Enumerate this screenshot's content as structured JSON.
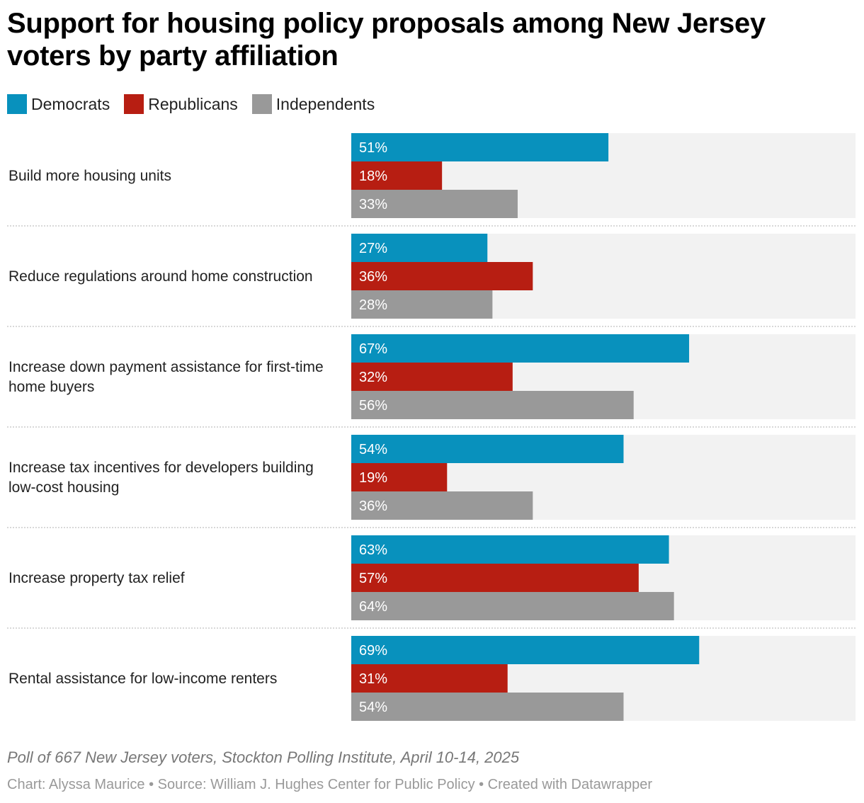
{
  "title": "Support for housing policy proposals among New Jersey voters by party affiliation",
  "legend": [
    {
      "label": "Democrats",
      "color": "#0891bd"
    },
    {
      "label": "Republicans",
      "color": "#b71e12"
    },
    {
      "label": "Independents",
      "color": "#999999"
    }
  ],
  "chart_data": {
    "type": "bar",
    "orientation": "horizontal",
    "grouped": true,
    "categories": [
      "Build more housing units",
      "Reduce regulations around home construction",
      "Increase down payment assistance for first-time home buyers",
      "Increase tax incentives for developers building low-cost housing",
      "Increase property tax relief",
      "Rental assistance for low-income renters"
    ],
    "series": [
      {
        "name": "Democrats",
        "color": "#0891bd",
        "values": [
          51,
          27,
          67,
          54,
          63,
          69
        ]
      },
      {
        "name": "Republicans",
        "color": "#b71e12",
        "values": [
          18,
          36,
          32,
          19,
          57,
          31
        ]
      },
      {
        "name": "Independents",
        "color": "#999999",
        "values": [
          33,
          28,
          56,
          36,
          64,
          54
        ]
      }
    ],
    "value_suffix": "%",
    "xlim": [
      0,
      100
    ],
    "background_bar_color": "#f2f2f2",
    "legend_position": "top-left",
    "grid": false
  },
  "notes": "Poll of 667 New Jersey voters, Stockton Polling Institute, April 10-14, 2025",
  "byline": "Chart: Alyssa Maurice • Source: William J. Hughes Center for Public Policy • Created with Datawrapper"
}
